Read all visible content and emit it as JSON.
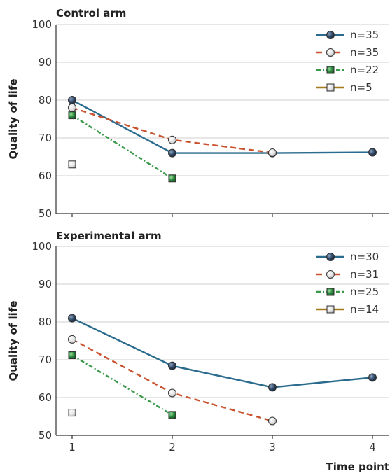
{
  "chart_data": [
    {
      "type": "line",
      "title": "Control arm",
      "xlabel": "",
      "ylabel": "Quality of life",
      "xlim": [
        1,
        4
      ],
      "ylim": [
        50,
        100
      ],
      "x_ticks": [
        1,
        2,
        3,
        4
      ],
      "y_ticks": [
        50,
        60,
        70,
        80,
        90,
        100
      ],
      "grid": "horizontal",
      "legend_position": "top-right",
      "series": [
        {
          "name": "n=35",
          "style": "solid",
          "marker": "circle",
          "color": "#2a6b8e",
          "marker_fill": "#2a3b55",
          "x": [
            1,
            2,
            3,
            4
          ],
          "y": [
            80,
            66,
            66,
            66.2
          ]
        },
        {
          "name": "n=35",
          "style": "dashed",
          "marker": "circle",
          "color": "#c9532f",
          "marker_fill": "#e8e8e8",
          "x": [
            1,
            2,
            3
          ],
          "y": [
            78,
            69.5,
            66.1
          ]
        },
        {
          "name": "n=22",
          "style": "dashdot",
          "marker": "square",
          "color": "#3a9a4a",
          "marker_fill": "#2e8b3e",
          "x": [
            1,
            2
          ],
          "y": [
            76,
            59.3
          ]
        },
        {
          "name": "n=5",
          "style": "solid",
          "marker": "square",
          "color": "#a47a1e",
          "marker_fill": "#e0e0e0",
          "x": [
            1
          ],
          "y": [
            63
          ]
        }
      ]
    },
    {
      "type": "line",
      "title": "Experimental arm",
      "xlabel": "Time point",
      "ylabel": "Quality of life",
      "xlim": [
        1,
        4
      ],
      "ylim": [
        50,
        100
      ],
      "x_ticks": [
        1,
        2,
        3,
        4
      ],
      "y_ticks": [
        50,
        60,
        70,
        80,
        90,
        100
      ],
      "grid": "horizontal",
      "legend_position": "top-right",
      "series": [
        {
          "name": "n=30",
          "style": "solid",
          "marker": "circle",
          "color": "#2a6b8e",
          "marker_fill": "#2a3b55",
          "x": [
            1,
            2,
            3,
            4
          ],
          "y": [
            81,
            68.4,
            62.7,
            65.3
          ]
        },
        {
          "name": "n=31",
          "style": "dashed",
          "marker": "circle",
          "color": "#c9532f",
          "marker_fill": "#e8e8e8",
          "x": [
            1,
            2,
            3
          ],
          "y": [
            75.4,
            61.2,
            53.8
          ]
        },
        {
          "name": "n=25",
          "style": "dashdot",
          "marker": "square",
          "color": "#3a9a4a",
          "marker_fill": "#2e8b3e",
          "x": [
            1,
            2
          ],
          "y": [
            71.2,
            55.4
          ]
        },
        {
          "name": "n=14",
          "style": "solid",
          "marker": "square",
          "color": "#a47a1e",
          "marker_fill": "#e0e0e0",
          "x": [
            1
          ],
          "y": [
            56
          ]
        }
      ]
    }
  ]
}
